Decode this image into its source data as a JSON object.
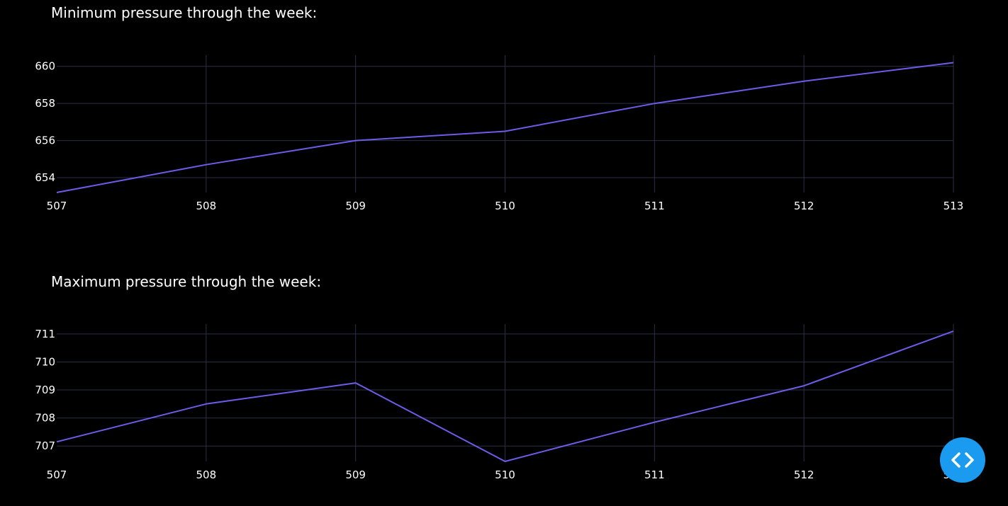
{
  "chart_data": [
    {
      "type": "line",
      "title": "Minimum pressure through the week:",
      "x": [
        507,
        508,
        509,
        510,
        511,
        512,
        513
      ],
      "series": [
        {
          "values": [
            653.2,
            654.7,
            656.0,
            656.5,
            658.0,
            659.2,
            660.2
          ]
        }
      ],
      "xlim": [
        507,
        513
      ],
      "ylim": [
        653.2,
        660.6
      ],
      "yticks": [
        654,
        656,
        658,
        660
      ],
      "xticks": [
        507,
        508,
        509,
        510,
        511,
        512,
        513
      ],
      "grid": true,
      "line_color": "#6c5ce7"
    },
    {
      "type": "line",
      "title": "Maximum pressure through the week:",
      "x": [
        507,
        508,
        509,
        510,
        511,
        512,
        513
      ],
      "series": [
        {
          "values": [
            707.15,
            708.5,
            709.25,
            706.45,
            707.85,
            709.15,
            711.1
          ]
        }
      ],
      "xlim": [
        507,
        513
      ],
      "ylim": [
        706.45,
        711.35
      ],
      "yticks": [
        707,
        708,
        709,
        710,
        711
      ],
      "xticks": [
        507,
        508,
        509,
        510,
        511,
        512,
        513
      ],
      "grid": true,
      "line_color": "#6c5ce7"
    }
  ],
  "fab": {
    "icon": "code-icon",
    "color": "#1a9bf0"
  }
}
